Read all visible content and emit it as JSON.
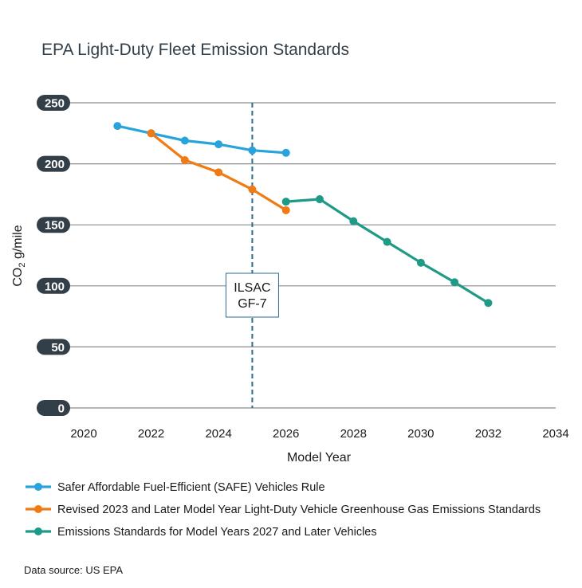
{
  "chart_data": {
    "type": "line",
    "title": "EPA Light-Duty Fleet Emission Standards",
    "xlabel": "Model Year",
    "ylabel_main": "CO",
    "ylabel_sub": "2",
    "ylabel_rest": " g/mile",
    "xlim": [
      2020,
      2034
    ],
    "ylim": [
      0,
      250
    ],
    "xticks": [
      2020,
      2022,
      2024,
      2026,
      2028,
      2030,
      2032,
      2034
    ],
    "yticks": [
      0,
      50,
      100,
      150,
      200,
      250
    ],
    "grid": true,
    "legend_position": "bottom",
    "series": [
      {
        "name": "Safer Affordable Fuel-Efficient (SAFE) Vehicles Rule",
        "color": "#29a3dc",
        "x": [
          2021,
          2022,
          2023,
          2024,
          2025,
          2026
        ],
        "y": [
          231,
          225,
          219,
          216,
          211,
          209
        ]
      },
      {
        "name": "Revised 2023 and Later Model Year Light-Duty Vehicle Greenhouse Gas Emissions Standards",
        "color": "#f07a13",
        "x": [
          2022,
          2023,
          2024,
          2025,
          2026
        ],
        "y": [
          225,
          203,
          193,
          179,
          162
        ]
      },
      {
        "name": "Emissions Standards for Model Years 2027 and Later Vehicles",
        "color": "#1f9a86",
        "x": [
          2026,
          2027,
          2028,
          2029,
          2030,
          2031,
          2032
        ],
        "y": [
          169,
          171,
          153,
          136,
          119,
          103,
          86
        ]
      }
    ],
    "annotation": {
      "x": 2025,
      "line1": "ILSAC",
      "line2": "GF-7",
      "line_color": "#2d6a8f"
    },
    "source": "Data source: US EPA"
  }
}
